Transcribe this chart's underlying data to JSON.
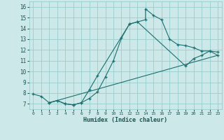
{
  "title": "",
  "xlabel": "Humidex (Indice chaleur)",
  "xlim": [
    -0.5,
    23.5
  ],
  "ylim": [
    6.5,
    16.5
  ],
  "xticks": [
    0,
    1,
    2,
    3,
    4,
    5,
    6,
    7,
    8,
    9,
    10,
    11,
    12,
    13,
    14,
    15,
    16,
    17,
    18,
    19,
    20,
    21,
    22,
    23
  ],
  "yticks": [
    7,
    8,
    9,
    10,
    11,
    12,
    13,
    14,
    15,
    16
  ],
  "background_color": "#cce8e8",
  "grid_color": "#99cccc",
  "line_color": "#1a7070",
  "line1_x": [
    0,
    1,
    2,
    3,
    4,
    5,
    6,
    7,
    8,
    12,
    13,
    14,
    14,
    15,
    16,
    17,
    18,
    19,
    20,
    21,
    22,
    23
  ],
  "line1_y": [
    7.9,
    7.7,
    7.1,
    7.3,
    7.0,
    6.9,
    7.1,
    8.3,
    9.6,
    14.4,
    14.6,
    14.8,
    15.8,
    15.2,
    14.8,
    13.0,
    12.5,
    12.4,
    12.2,
    11.9,
    11.9,
    11.8
  ],
  "line2_x": [
    2,
    3,
    4,
    5,
    6,
    7,
    8,
    9,
    10,
    11,
    12,
    13,
    19,
    20,
    21,
    22,
    23
  ],
  "line2_y": [
    7.1,
    7.3,
    7.0,
    6.9,
    7.1,
    7.5,
    8.1,
    9.5,
    11.0,
    13.1,
    14.4,
    14.6,
    10.5,
    11.2,
    11.5,
    11.9,
    11.5
  ],
  "line3_x": [
    2,
    23
  ],
  "line3_y": [
    7.1,
    11.5
  ],
  "figsize": [
    3.2,
    2.0
  ],
  "dpi": 100
}
